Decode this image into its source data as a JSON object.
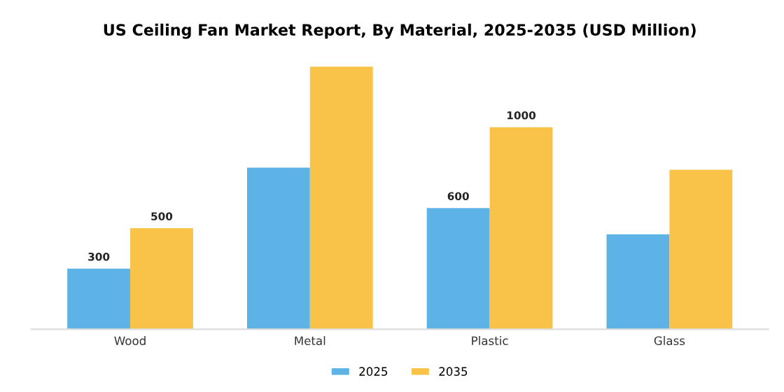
{
  "chart_data": {
    "type": "bar",
    "title": "US Ceiling Fan Market Report, By Material, 2025-2035 (USD Million)",
    "categories": [
      "Wood",
      "Metal",
      "Plastic",
      "Glass"
    ],
    "series": [
      {
        "name": "2025",
        "color": "#5db3e6",
        "values": [
          300,
          800,
          600,
          470
        ],
        "value_labels": [
          "300",
          null,
          "600",
          null
        ]
      },
      {
        "name": "2035",
        "color": "#f9c34a",
        "values": [
          500,
          1300,
          1000,
          790
        ],
        "value_labels": [
          "500",
          null,
          "1000",
          null
        ]
      }
    ],
    "legend": "bottom",
    "grid": false
  }
}
